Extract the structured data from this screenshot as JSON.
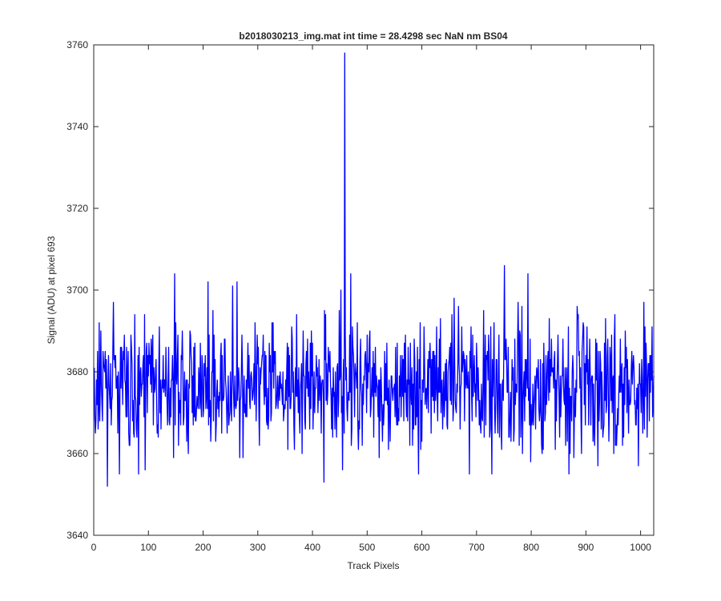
{
  "chart_data": {
    "type": "line",
    "title": "b2018030213_img.mat int time = 28.4298 sec  NaN nm BS04",
    "xlabel": "Track Pixels",
    "ylabel": "Signal (ADU) at pixel 693",
    "xlim": [
      0,
      1024
    ],
    "ylim": [
      3640,
      3760
    ],
    "xticks": [
      0,
      100,
      200,
      300,
      400,
      500,
      600,
      700,
      800,
      900,
      1000
    ],
    "yticks": [
      3640,
      3660,
      3680,
      3700,
      3720,
      3740,
      3760
    ],
    "grid": false,
    "series_color": "#0000ff",
    "series": [
      {
        "x_start": 1,
        "x_step": 1,
        "noise": {
          "mean": 3676.5,
          "sd": 8,
          "min": 3652,
          "max": 3706
        },
        "peaks": [
          {
            "x": 25,
            "y": 3652
          },
          {
            "x": 148,
            "y": 3704
          },
          {
            "x": 209,
            "y": 3702
          },
          {
            "x": 262,
            "y": 3702
          },
          {
            "x": 421,
            "y": 3653
          },
          {
            "x": 459,
            "y": 3758
          },
          {
            "x": 470,
            "y": 3704
          },
          {
            "x": 594,
            "y": 3655
          },
          {
            "x": 751,
            "y": 3706
          },
          {
            "x": 794,
            "y": 3704
          },
          {
            "x": 922,
            "y": 3657
          },
          {
            "x": 1006,
            "y": 3697
          }
        ],
        "length": 1024
      }
    ]
  }
}
